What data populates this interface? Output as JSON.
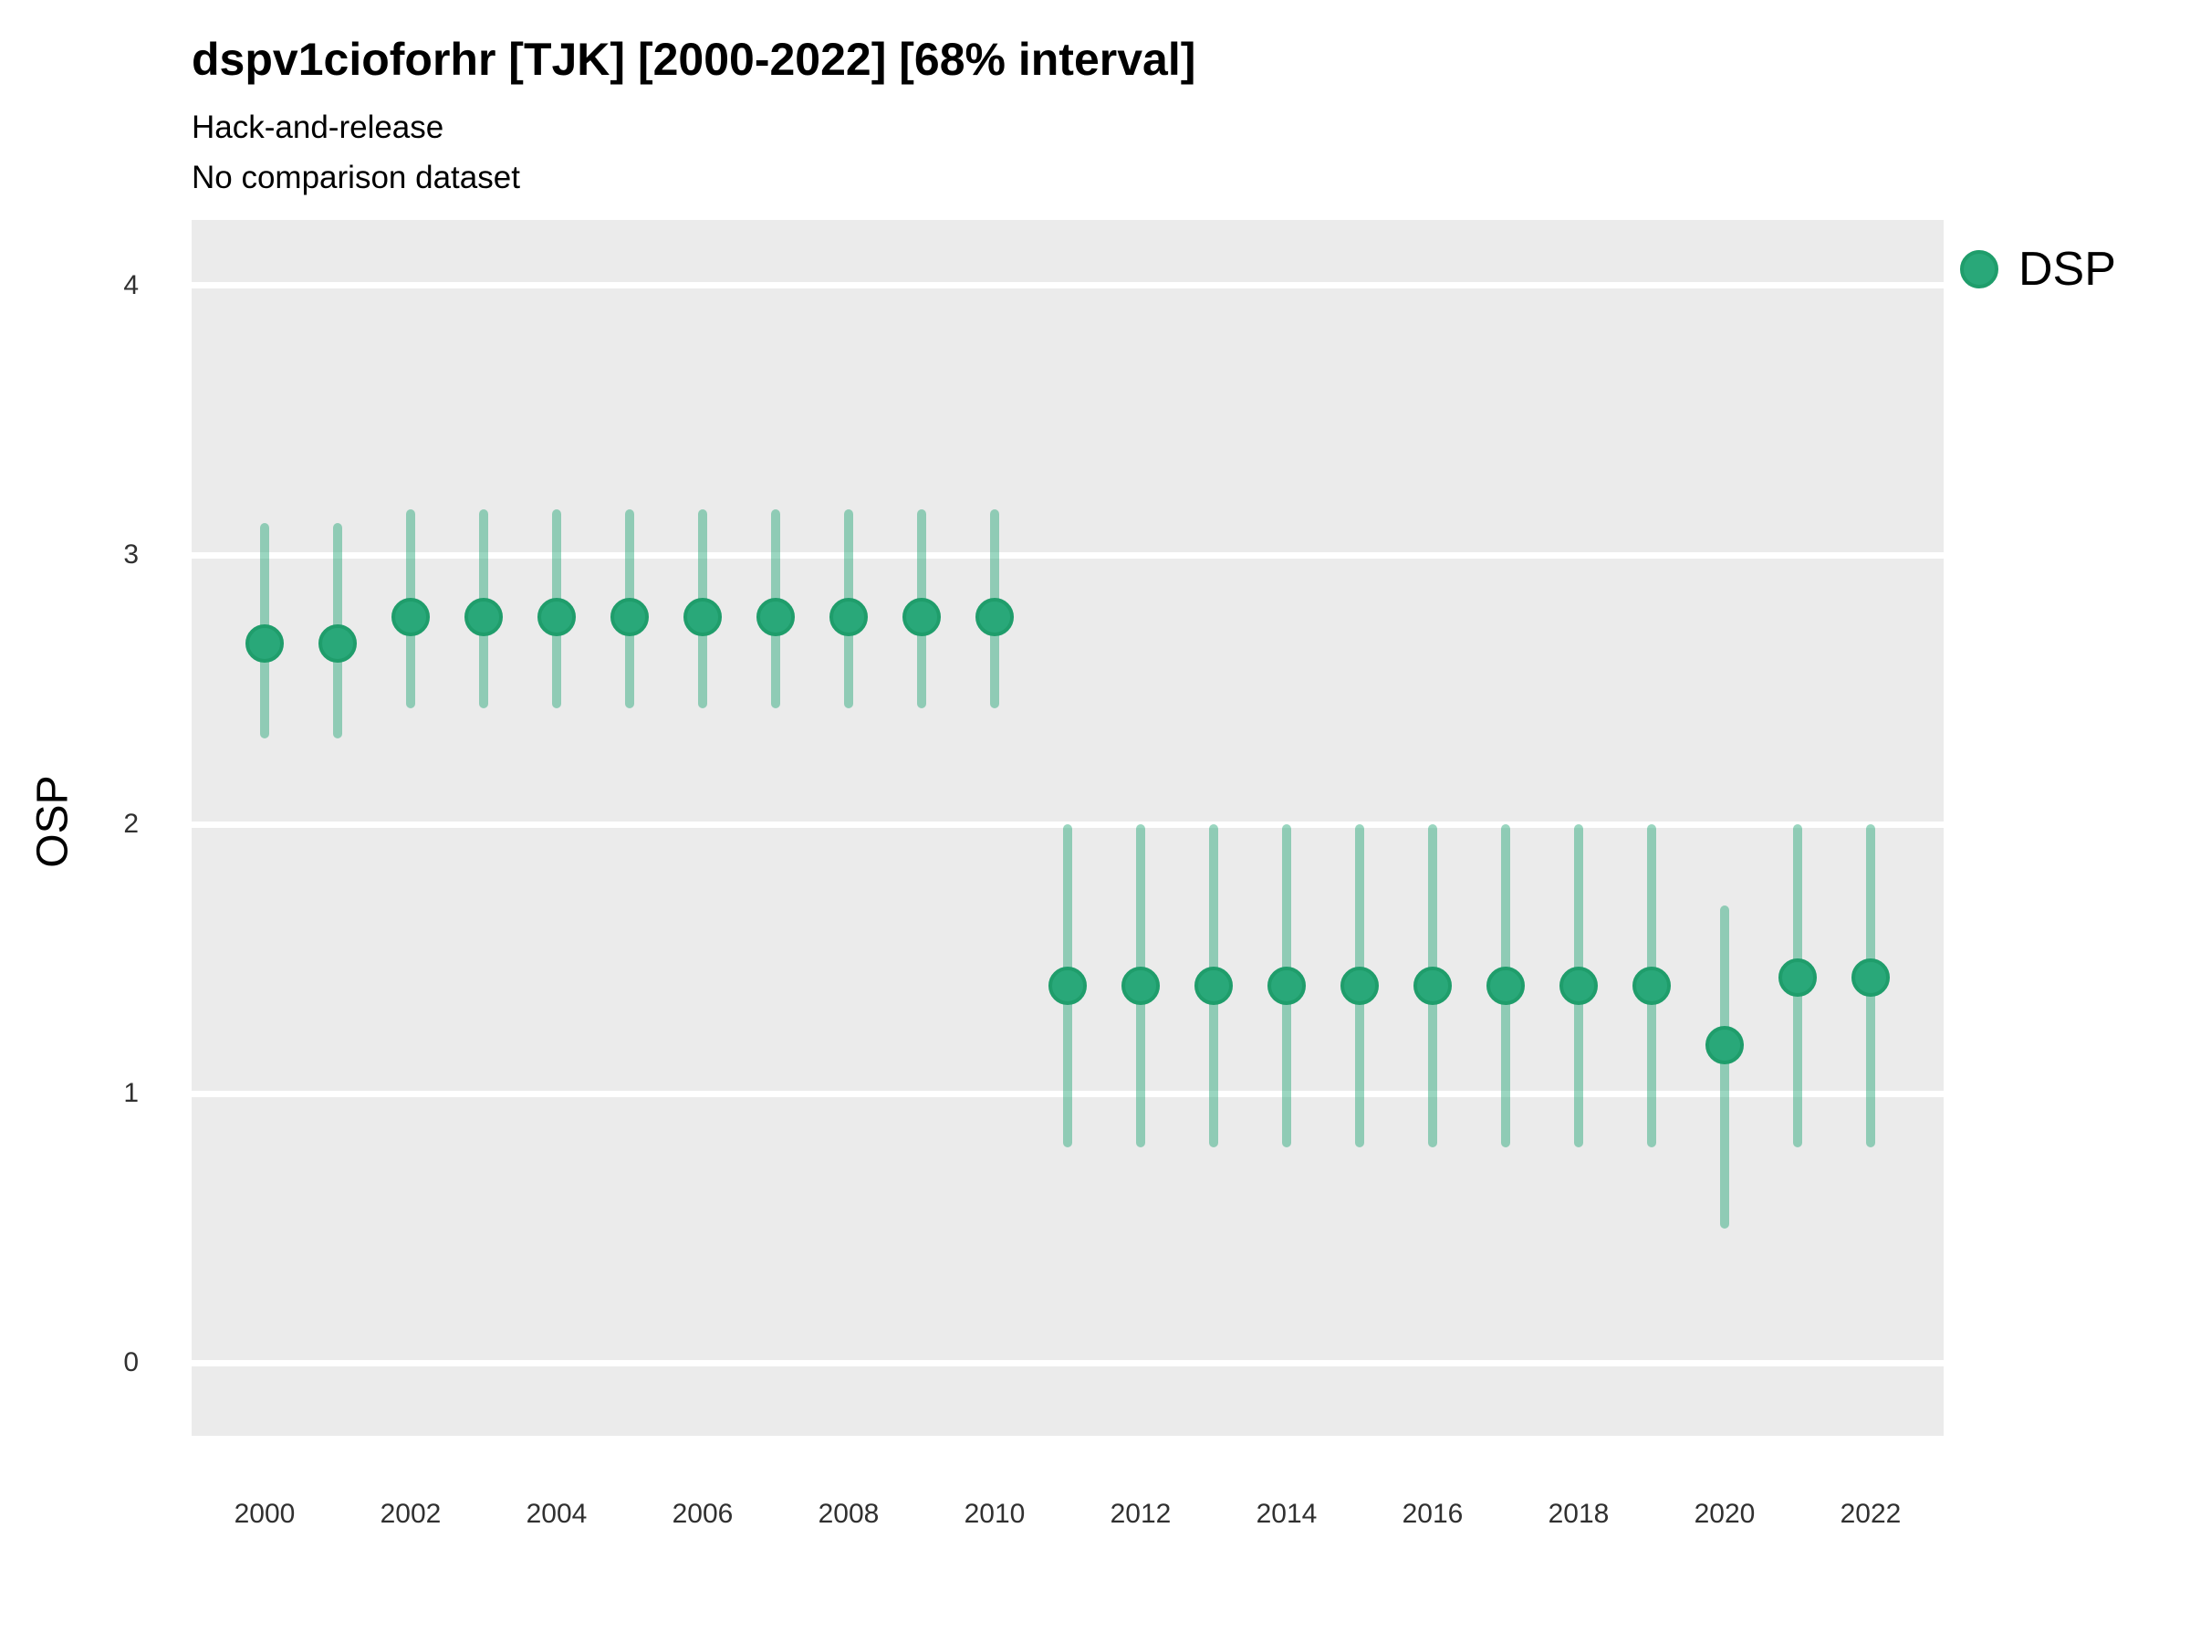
{
  "header": {
    "title": "dspv1cioforhr [TJK] [2000-2022] [68% interval]",
    "subtitle_line1": "Hack-and-release",
    "subtitle_line2": "No comparison dataset"
  },
  "legend": {
    "label": "DSP",
    "position": "right-top"
  },
  "colors": {
    "point_fill": "#29a879",
    "point_stroke": "#1f9d6b",
    "interval_line": "rgba(41,168,121,0.47)",
    "panel_background": "#ebebeb",
    "gridline": "#ffffff",
    "text": "#000000",
    "tick_text": "#303030"
  },
  "chart_data": {
    "type": "scatter",
    "subtype": "pointrange",
    "title": "dspv1cioforhr [TJK] [2000-2022] [68% interval]",
    "subtitle": [
      "Hack-and-release",
      "No comparison dataset"
    ],
    "xlabel": "",
    "ylabel": "OSP",
    "interval_level": "68%",
    "grid": "horizontal-only",
    "x_range": [
      1999,
      2023
    ],
    "y_range": [
      -0.271,
      4.244
    ],
    "xticks": [
      2000,
      2002,
      2004,
      2006,
      2008,
      2010,
      2012,
      2014,
      2016,
      2018,
      2020,
      2022
    ],
    "yticks": [
      0,
      1,
      2,
      3,
      4
    ],
    "series": [
      {
        "name": "DSP",
        "points": [
          {
            "x": 2000,
            "y": 2.67,
            "lo": 2.32,
            "hi": 3.12
          },
          {
            "x": 2001,
            "y": 2.67,
            "lo": 2.32,
            "hi": 3.12
          },
          {
            "x": 2002,
            "y": 2.77,
            "lo": 2.43,
            "hi": 3.17
          },
          {
            "x": 2003,
            "y": 2.77,
            "lo": 2.43,
            "hi": 3.17
          },
          {
            "x": 2004,
            "y": 2.77,
            "lo": 2.43,
            "hi": 3.17
          },
          {
            "x": 2005,
            "y": 2.77,
            "lo": 2.43,
            "hi": 3.17
          },
          {
            "x": 2006,
            "y": 2.77,
            "lo": 2.43,
            "hi": 3.17
          },
          {
            "x": 2007,
            "y": 2.77,
            "lo": 2.43,
            "hi": 3.17
          },
          {
            "x": 2008,
            "y": 2.77,
            "lo": 2.43,
            "hi": 3.17
          },
          {
            "x": 2009,
            "y": 2.77,
            "lo": 2.43,
            "hi": 3.17
          },
          {
            "x": 2010,
            "y": 2.77,
            "lo": 2.43,
            "hi": 3.17
          },
          {
            "x": 2011,
            "y": 1.4,
            "lo": 0.8,
            "hi": 2.0
          },
          {
            "x": 2012,
            "y": 1.4,
            "lo": 0.8,
            "hi": 2.0
          },
          {
            "x": 2013,
            "y": 1.4,
            "lo": 0.8,
            "hi": 2.0
          },
          {
            "x": 2014,
            "y": 1.4,
            "lo": 0.8,
            "hi": 2.0
          },
          {
            "x": 2015,
            "y": 1.4,
            "lo": 0.8,
            "hi": 2.0
          },
          {
            "x": 2016,
            "y": 1.4,
            "lo": 0.8,
            "hi": 2.0
          },
          {
            "x": 2017,
            "y": 1.4,
            "lo": 0.8,
            "hi": 2.0
          },
          {
            "x": 2018,
            "y": 1.4,
            "lo": 0.8,
            "hi": 2.0
          },
          {
            "x": 2019,
            "y": 1.4,
            "lo": 0.8,
            "hi": 2.0
          },
          {
            "x": 2020,
            "y": 1.18,
            "lo": 0.5,
            "hi": 1.7
          },
          {
            "x": 2021,
            "y": 1.43,
            "lo": 0.8,
            "hi": 2.0
          },
          {
            "x": 2022,
            "y": 1.43,
            "lo": 0.8,
            "hi": 2.0
          }
        ]
      }
    ]
  }
}
